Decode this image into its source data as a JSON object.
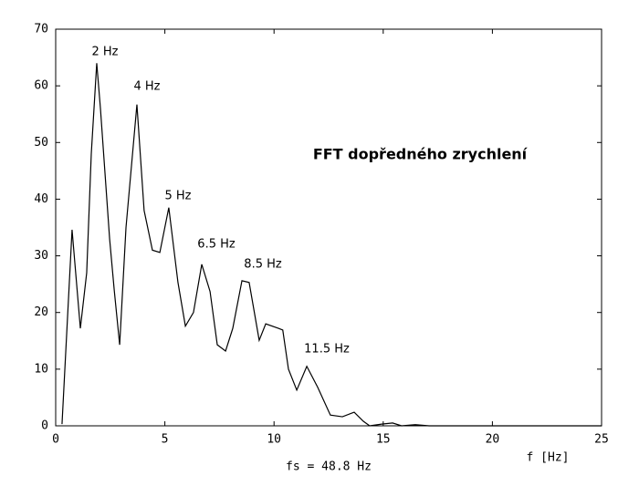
{
  "chart_data": {
    "type": "line",
    "title": "FFT dopředného zrychlení",
    "xlabel": "f [Hz]",
    "note": "fs = 48.8 Hz",
    "annotations": [
      "2 Hz",
      "4 Hz",
      "5 Hz",
      "6.5 Hz",
      "8.5 Hz",
      "11.5 Hz"
    ],
    "x": [
      0.29,
      0.75,
      1.13,
      1.42,
      1.63,
      1.88,
      2.05,
      2.47,
      2.68,
      2.93,
      3.22,
      3.72,
      4.05,
      4.43,
      4.77,
      5.18,
      5.6,
      5.94,
      6.31,
      6.69,
      7.07,
      7.4,
      7.78,
      8.11,
      8.53,
      8.86,
      9.32,
      9.62,
      10.2,
      10.4,
      10.66,
      11.04,
      11.5,
      12.0,
      12.58,
      13.13,
      13.67,
      14.09,
      14.38,
      14.93,
      15.43,
      15.84,
      16.47,
      17.1,
      20,
      25
    ],
    "series": [
      {
        "name": "FFT",
        "color": "#000000",
        "values": [
          0.3,
          34.6,
          17.2,
          27,
          48,
          64,
          56,
          33,
          24,
          14.3,
          35,
          56.7,
          38,
          31,
          30.6,
          38.5,
          25.3,
          17.6,
          20,
          28.5,
          23.7,
          14.3,
          13.2,
          17.2,
          25.6,
          25.3,
          15.1,
          18,
          17.2,
          16.9,
          10,
          6.3,
          10.5,
          6.8,
          1.9,
          1.6,
          2.4,
          0.8,
          0,
          0.3,
          0.5,
          0,
          0.2,
          0,
          0,
          0
        ]
      }
    ],
    "xlim": [
      0,
      25
    ],
    "ylim": [
      0,
      70
    ],
    "xticks": [
      0,
      5,
      10,
      15,
      20,
      25
    ],
    "yticks": [
      0,
      10,
      20,
      30,
      40,
      50,
      60,
      70
    ]
  }
}
